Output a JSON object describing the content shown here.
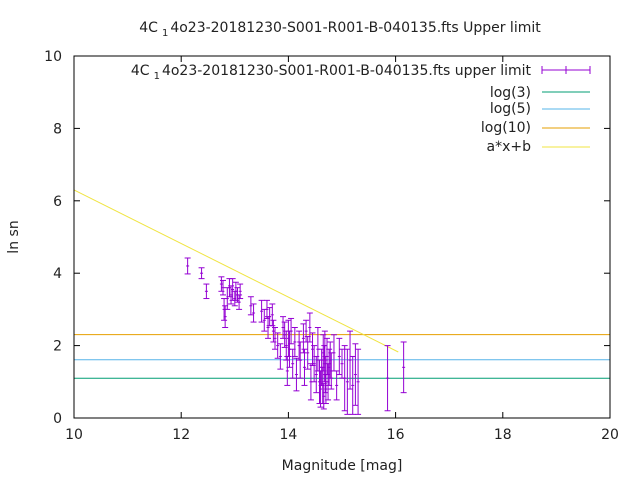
{
  "chart_data": {
    "type": "scatter",
    "title": {
      "prefix": "4C",
      "sub": "1",
      "rest": "4o23-20181230-S001-R001-B-040135.fts Upper limit"
    },
    "xlabel": "Magnitude [mag]",
    "ylabel": "ln sn",
    "xlim": [
      10,
      20
    ],
    "ylim": [
      0,
      10
    ],
    "xticks": [
      10,
      12,
      14,
      16,
      18,
      20
    ],
    "yticks": [
      0,
      2,
      4,
      6,
      8,
      10
    ],
    "grid": false,
    "legend_position": "top-right",
    "legend": [
      {
        "key": "data",
        "prefix": "4C",
        "sub": "1",
        "rest": "4o23-20181230-S001-R001-B-040135.fts upper limit",
        "color": "#9400d3",
        "style": "errorbar"
      },
      {
        "key": "log3",
        "label": "log(3)",
        "color": "#009e73",
        "style": "line"
      },
      {
        "key": "log5",
        "label": "log(5)",
        "color": "#56b4e9",
        "style": "line"
      },
      {
        "key": "log10",
        "label": "log(10)",
        "color": "#e69f00",
        "style": "line"
      },
      {
        "key": "fit",
        "label": "a*x+b",
        "color": "#f0e442",
        "style": "line"
      }
    ],
    "hlines": [
      {
        "key": "log3",
        "y": 1.0986
      },
      {
        "key": "log5",
        "y": 1.6094
      },
      {
        "key": "log10",
        "y": 2.3026
      }
    ],
    "fit_line": {
      "a": -0.74,
      "b": 13.7,
      "x_from": 10.0,
      "x_to": 16.05
    },
    "series": [
      {
        "key": "data",
        "points": [
          [
            12.12,
            4.2,
            0.22
          ],
          [
            12.38,
            4.0,
            0.15
          ],
          [
            12.47,
            3.5,
            0.2
          ],
          [
            12.75,
            3.7,
            0.2
          ],
          [
            12.78,
            3.6,
            0.2
          ],
          [
            12.8,
            3.0,
            0.3
          ],
          [
            12.82,
            2.8,
            0.3
          ],
          [
            12.86,
            3.3,
            0.3
          ],
          [
            12.9,
            3.6,
            0.25
          ],
          [
            12.93,
            3.4,
            0.25
          ],
          [
            12.96,
            3.55,
            0.3
          ],
          [
            13.0,
            3.3,
            0.2
          ],
          [
            13.02,
            3.5,
            0.25
          ],
          [
            13.05,
            3.4,
            0.2
          ],
          [
            13.08,
            3.2,
            0.2
          ],
          [
            13.1,
            3.5,
            0.2
          ],
          [
            13.3,
            3.1,
            0.25
          ],
          [
            13.35,
            2.9,
            0.25
          ],
          [
            13.5,
            2.95,
            0.3
          ],
          [
            13.55,
            2.7,
            0.3
          ],
          [
            13.6,
            3.0,
            0.25
          ],
          [
            13.62,
            2.5,
            0.3
          ],
          [
            13.65,
            2.8,
            0.25
          ],
          [
            13.7,
            2.85,
            0.3
          ],
          [
            13.72,
            2.4,
            0.3
          ],
          [
            13.75,
            2.2,
            0.3
          ],
          [
            13.8,
            2.0,
            0.35
          ],
          [
            13.85,
            1.7,
            0.35
          ],
          [
            13.9,
            2.5,
            0.3
          ],
          [
            13.93,
            2.3,
            0.35
          ],
          [
            13.96,
            2.0,
            0.4
          ],
          [
            13.98,
            1.3,
            0.4
          ],
          [
            14.0,
            2.2,
            0.5
          ],
          [
            14.02,
            1.9,
            0.5
          ],
          [
            14.05,
            2.4,
            0.35
          ],
          [
            14.08,
            1.5,
            0.4
          ],
          [
            14.12,
            2.1,
            0.4
          ],
          [
            14.15,
            1.2,
            0.45
          ],
          [
            14.2,
            2.0,
            0.4
          ],
          [
            14.22,
            1.6,
            0.5
          ],
          [
            14.28,
            2.2,
            0.4
          ],
          [
            14.3,
            1.4,
            0.5
          ],
          [
            14.33,
            2.4,
            0.3
          ],
          [
            14.36,
            1.8,
            0.45
          ],
          [
            14.4,
            2.5,
            0.4
          ],
          [
            14.42,
            1.0,
            0.5
          ],
          [
            14.45,
            1.9,
            0.45
          ],
          [
            14.48,
            1.5,
            0.5
          ],
          [
            14.52,
            1.2,
            0.5
          ],
          [
            14.55,
            1.9,
            0.6
          ],
          [
            14.58,
            1.0,
            0.6
          ],
          [
            14.6,
            0.8,
            0.5
          ],
          [
            14.62,
            1.4,
            0.5
          ],
          [
            14.64,
            0.9,
            0.5
          ],
          [
            14.65,
            1.8,
            0.5
          ],
          [
            14.66,
            0.6,
            0.35
          ],
          [
            14.67,
            1.5,
            0.5
          ],
          [
            14.68,
            2.0,
            0.4
          ],
          [
            14.69,
            1.2,
            0.5
          ],
          [
            14.7,
            0.8,
            0.4
          ],
          [
            14.72,
            1.7,
            0.5
          ],
          [
            14.74,
            1.0,
            0.5
          ],
          [
            14.76,
            1.4,
            0.5
          ],
          [
            14.78,
            1.6,
            0.5
          ],
          [
            14.8,
            1.3,
            0.5
          ],
          [
            14.85,
            1.8,
            0.5
          ],
          [
            14.9,
            0.9,
            0.4
          ],
          [
            14.95,
            1.7,
            0.5
          ],
          [
            15.0,
            1.5,
            0.4
          ],
          [
            15.05,
            1.1,
            0.9
          ],
          [
            15.1,
            1.0,
            0.9
          ],
          [
            15.15,
            1.6,
            0.8
          ],
          [
            15.2,
            0.9,
            0.8
          ],
          [
            15.25,
            1.2,
            0.85
          ],
          [
            15.3,
            1.0,
            0.9
          ],
          [
            15.85,
            1.1,
            0.9
          ],
          [
            16.15,
            1.4,
            0.7
          ]
        ]
      }
    ]
  }
}
